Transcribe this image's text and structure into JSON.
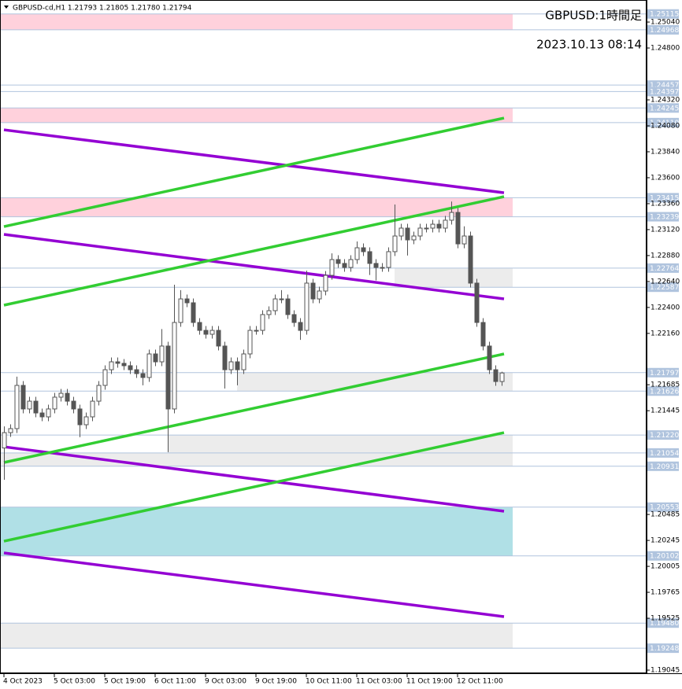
{
  "chart_data": {
    "type": "candlestick",
    "header": "GBPUSD-cd,H1  1.21793 1.21805 1.21780 1.21794",
    "title": "GBPUSD:1時間足",
    "subtitle": "2023.10.13 08:14",
    "ylim": [
      1.19016,
      1.25244
    ],
    "xlim": [
      -0.5,
      101.5
    ],
    "yticks": [
      {
        "value": 1.2504,
        "label": "1.25040"
      },
      {
        "value": 1.248,
        "label": "1.24800"
      },
      {
        "value": 1.2432,
        "label": "1.24320"
      },
      {
        "value": 1.2408,
        "label": "1.24080"
      },
      {
        "value": 1.2384,
        "label": "1.23840"
      },
      {
        "value": 1.236,
        "label": "1.23600"
      },
      {
        "value": 1.2336,
        "label": "1.23360"
      },
      {
        "value": 1.2312,
        "label": "1.23120"
      },
      {
        "value": 1.2288,
        "label": "1.22880"
      },
      {
        "value": 1.2264,
        "label": "1.22640"
      },
      {
        "value": 1.224,
        "label": "1.22400"
      },
      {
        "value": 1.2216,
        "label": "1.22160"
      },
      {
        "value": 1.21685,
        "label": "1.21685"
      },
      {
        "value": 1.21445,
        "label": "1.21445"
      },
      {
        "value": 1.20485,
        "label": "1.20485"
      },
      {
        "value": 1.20245,
        "label": "1.20245"
      },
      {
        "value": 1.20005,
        "label": "1.20005"
      },
      {
        "value": 1.19765,
        "label": "1.19765"
      },
      {
        "value": 1.19525,
        "label": "1.19525"
      },
      {
        "value": 1.19045,
        "label": "1.19045"
      }
    ],
    "xticks": [
      {
        "value": 0,
        "label": "4 Oct 2023"
      },
      {
        "value": 8,
        "label": "5 Oct 03:00"
      },
      {
        "value": 16,
        "label": "5 Oct 19:00"
      },
      {
        "value": 24,
        "label": "6 Oct 11:00"
      },
      {
        "value": 32,
        "label": "9 Oct 03:00"
      },
      {
        "value": 40,
        "label": "9 Oct 19:00"
      },
      {
        "value": 48,
        "label": "10 Oct 11:00"
      },
      {
        "value": 56,
        "label": "11 Oct 03:00"
      },
      {
        "value": 64,
        "label": "11 Oct 19:00"
      },
      {
        "value": 72,
        "label": "12 Oct 11:00"
      }
    ],
    "levels": [
      {
        "value": 1.25115,
        "label": "1.25115"
      },
      {
        "value": 1.24968,
        "label": "1.24968"
      },
      {
        "value": 1.24457,
        "label": "1.24457"
      },
      {
        "value": 1.24397,
        "label": "1.24397"
      },
      {
        "value": 1.24245,
        "label": "1.24245"
      },
      {
        "value": 1.2411,
        "label": "1.24110"
      },
      {
        "value": 1.23415,
        "label": "1.23415"
      },
      {
        "value": 1.23239,
        "label": "1.23239"
      },
      {
        "value": 1.22764,
        "label": "1.22764"
      },
      {
        "value": 1.22587,
        "label": "1.22587"
      },
      {
        "value": 1.21797,
        "label": "1.21797"
      },
      {
        "value": 1.21626,
        "label": "1.21626"
      },
      {
        "value": 1.2122,
        "label": "1.21220"
      },
      {
        "value": 1.21054,
        "label": "1.21054"
      },
      {
        "value": 1.20931,
        "label": "1.20931"
      },
      {
        "value": 1.20553,
        "label": "1.20553"
      },
      {
        "value": 1.20102,
        "label": "1.20102"
      },
      {
        "value": 1.1948,
        "label": "1.19480"
      },
      {
        "value": 1.19248,
        "label": "1.19248"
      }
    ],
    "zones": [
      {
        "color": "#ffd1dc",
        "from": 1.25115,
        "to": 1.24968,
        "x0": -0.5
      },
      {
        "color": "#ffffff",
        "from": 1.24457,
        "to": 1.24397,
        "x0": -0.5
      },
      {
        "color": "#ffd1dc",
        "from": 1.24245,
        "to": 1.2411,
        "x0": -0.5
      },
      {
        "color": "#ffd1dc",
        "from": 1.23415,
        "to": 1.23239,
        "x0": -0.5
      },
      {
        "color": "#ececec",
        "from": 1.22764,
        "to": 1.22587,
        "x0": 62
      },
      {
        "color": "#ececec",
        "from": 1.21797,
        "to": 1.21626,
        "x0": 37
      },
      {
        "color": "#ececec",
        "from": 1.2122,
        "to": 1.21054,
        "x0": 26
      },
      {
        "color": "#ececec",
        "from": 1.21054,
        "to": 1.20931,
        "x0": -0.5
      },
      {
        "color": "#b0e0e6",
        "from": 1.20553,
        "to": 1.20102,
        "x0": -0.5
      },
      {
        "color": "#ececec",
        "from": 1.1948,
        "to": 1.19248,
        "x0": -0.5
      }
    ],
    "lines": [
      {
        "color": "#9400d3",
        "from": 1.24043,
        "to": 1.23461
      },
      {
        "color": "#9400d3",
        "from": 1.23076,
        "to": 1.22479
      },
      {
        "color": "#9400d3",
        "from": 1.21111,
        "to": 1.20515
      },
      {
        "color": "#9400d3",
        "from": 1.20129,
        "to": 1.1954
      },
      {
        "color": "#32cd32",
        "from": 1.23148,
        "to": 1.24152
      },
      {
        "color": "#32cd32",
        "from": 1.22421,
        "to": 1.23425
      },
      {
        "color": "#32cd32",
        "from": 1.20966,
        "to": 1.2197
      },
      {
        "color": "#32cd32",
        "from": 1.20238,
        "to": 1.21242
      }
    ],
    "candles": {
      "open": [
        1.211,
        1.21242,
        1.21279,
        1.21679,
        1.21461,
        1.21533,
        1.21424,
        1.21388,
        1.21461,
        1.2157,
        1.21606,
        1.21533,
        1.21461,
        1.21315,
        1.21388,
        1.21533,
        1.21679,
        1.21824,
        1.21897,
        1.21883,
        1.21861,
        1.21824,
        1.21788,
        1.21752,
        1.2197,
        1.21897,
        1.22043,
        1.21461,
        1.22261,
        1.22479,
        1.22443,
        1.22261,
        1.22188,
        1.22152,
        1.22188,
        1.22043,
        1.21824,
        1.21897,
        1.21824,
        1.2197,
        1.22188,
        1.22188,
        1.22334,
        1.2237,
        1.22479,
        1.22479,
        1.22334,
        1.22261,
        1.22188,
        1.22625,
        1.22479,
        1.22552,
        1.22697,
        1.22843,
        1.22807,
        1.2277,
        1.22843,
        1.22952,
        1.22916,
        1.22807,
        1.2277,
        1.2277,
        1.22916,
        1.23061,
        1.23134,
        1.23025,
        1.23061,
        1.23134,
        1.23134,
        1.2317,
        1.23134,
        1.23207,
        1.23279,
        1.22988,
        1.23061,
        1.22625,
        1.22261,
        1.22043,
        1.21824,
        1.21715
      ],
      "high": [
        1.213,
        1.21319,
        1.2176,
        1.21719,
        1.21573,
        1.21573,
        1.21464,
        1.21501,
        1.2161,
        1.21646,
        1.21646,
        1.21573,
        1.21501,
        1.21428,
        1.21573,
        1.21719,
        1.21864,
        1.21937,
        1.21937,
        1.21923,
        1.21901,
        1.21864,
        1.21828,
        1.2201,
        1.2201,
        1.222,
        1.22083,
        1.2261,
        1.2256,
        1.22519,
        1.22483,
        1.22301,
        1.22228,
        1.22228,
        1.22228,
        1.22083,
        1.21937,
        1.21937,
        1.2201,
        1.22228,
        1.22228,
        1.22374,
        1.2241,
        1.22519,
        1.2256,
        1.22519,
        1.22374,
        1.22301,
        1.2274,
        1.22665,
        1.22592,
        1.22737,
        1.229,
        1.22883,
        1.22847,
        1.22883,
        1.2301,
        1.22992,
        1.22956,
        1.22847,
        1.2281,
        1.22956,
        1.23352,
        1.23174,
        1.23174,
        1.23101,
        1.23174,
        1.23174,
        1.2321,
        1.2321,
        1.23247,
        1.2338,
        1.23319,
        1.2315,
        1.23101,
        1.22665,
        1.22301,
        1.22083,
        1.21864,
        1.21805
      ],
      "low": [
        1.20806,
        1.21202,
        1.21239,
        1.21421,
        1.21421,
        1.21384,
        1.21348,
        1.21348,
        1.21421,
        1.2153,
        1.21493,
        1.21421,
        1.212,
        1.21275,
        1.21348,
        1.21493,
        1.21639,
        1.21784,
        1.21843,
        1.21821,
        1.21784,
        1.21748,
        1.2168,
        1.21712,
        1.21857,
        1.21857,
        1.21061,
        1.21421,
        1.22221,
        1.22403,
        1.22221,
        1.22148,
        1.22112,
        1.22112,
        1.22003,
        1.2165,
        1.21784,
        1.2168,
        1.21784,
        1.2193,
        1.22148,
        1.22148,
        1.22294,
        1.2233,
        1.22439,
        1.22294,
        1.22221,
        1.221,
        1.22148,
        1.22439,
        1.22439,
        1.22512,
        1.22657,
        1.22767,
        1.2273,
        1.2273,
        1.22803,
        1.22876,
        1.227,
        1.2265,
        1.2273,
        1.2273,
        1.22876,
        1.23021,
        1.2288,
        1.22985,
        1.23021,
        1.23094,
        1.23094,
        1.23094,
        1.23094,
        1.23167,
        1.22948,
        1.22948,
        1.22585,
        1.22221,
        1.22003,
        1.21784,
        1.21675,
        1.21675
      ],
      "close": [
        1.21242,
        1.21279,
        1.21679,
        1.21461,
        1.21533,
        1.21424,
        1.21388,
        1.21461,
        1.2157,
        1.21606,
        1.21533,
        1.21461,
        1.21315,
        1.21388,
        1.21533,
        1.21679,
        1.21824,
        1.21897,
        1.21883,
        1.21861,
        1.21824,
        1.21788,
        1.21752,
        1.2197,
        1.21897,
        1.22043,
        1.21461,
        1.22261,
        1.22479,
        1.22443,
        1.22261,
        1.22188,
        1.22152,
        1.22188,
        1.22043,
        1.21824,
        1.21897,
        1.21824,
        1.2197,
        1.22188,
        1.22188,
        1.22334,
        1.2237,
        1.22479,
        1.22479,
        1.22334,
        1.22261,
        1.22188,
        1.22625,
        1.22479,
        1.22552,
        1.22697,
        1.22843,
        1.22807,
        1.2277,
        1.22843,
        1.22952,
        1.22916,
        1.22807,
        1.2277,
        1.2277,
        1.22916,
        1.23061,
        1.23134,
        1.23025,
        1.23061,
        1.23134,
        1.23134,
        1.2317,
        1.23134,
        1.23207,
        1.23279,
        1.22988,
        1.23061,
        1.22625,
        1.22261,
        1.22043,
        1.21824,
        1.21715,
        1.21794
      ]
    }
  }
}
